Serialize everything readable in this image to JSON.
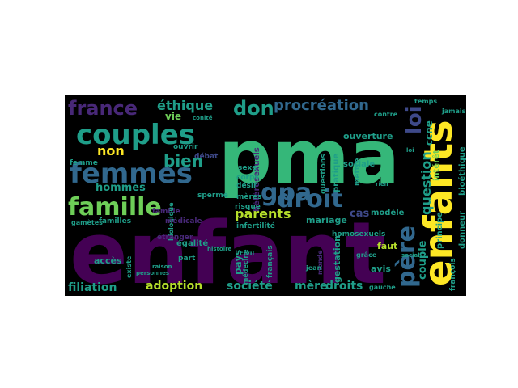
{
  "word_cloud": {
    "background": "#000000",
    "colors": {
      "dark_purple": "#440154",
      "purple": "#482878",
      "indigo": "#3e4989",
      "blue": "#31688e",
      "teal_blue": "#26828e",
      "teal": "#1f9e89",
      "green": "#35b779",
      "light_green": "#6ece58",
      "lime": "#b5de2b",
      "yellow": "#fde725"
    },
    "words": [
      {
        "text": "pma",
        "color": "green"
      },
      {
        "text": "enfant",
        "color": "dark_purple"
      },
      {
        "text": "enfants",
        "color": "yellow"
      },
      {
        "text": "couples",
        "color": "teal"
      },
      {
        "text": "femmes",
        "color": "blue"
      },
      {
        "text": "droit",
        "color": "blue"
      },
      {
        "text": "famille",
        "color": "light_green"
      },
      {
        "text": "gpa",
        "color": "blue"
      },
      {
        "text": "père",
        "color": "blue"
      },
      {
        "text": "loi",
        "color": "indigo"
      },
      {
        "text": "france",
        "color": "purple"
      },
      {
        "text": "don",
        "color": "teal"
      },
      {
        "text": "procréation",
        "color": "blue"
      },
      {
        "text": "éthique",
        "color": "teal"
      },
      {
        "text": "bien",
        "color": "teal"
      },
      {
        "text": "non",
        "color": "yellow"
      },
      {
        "text": "hommes",
        "color": "teal"
      },
      {
        "text": "parents",
        "color": "lime"
      },
      {
        "text": "question",
        "color": "teal"
      },
      {
        "text": "couple",
        "color": "teal"
      },
      {
        "text": "adoption",
        "color": "lime"
      },
      {
        "text": "filiation",
        "color": "teal"
      },
      {
        "text": "société",
        "color": "teal"
      },
      {
        "text": "mère",
        "color": "teal"
      },
      {
        "text": "droits",
        "color": "teal"
      },
      {
        "text": "ccne",
        "color": "teal"
      },
      {
        "text": "cas",
        "color": "indigo"
      },
      {
        "text": "vie",
        "color": "light_green"
      },
      {
        "text": "pays",
        "color": "teal"
      },
      {
        "text": "gestation",
        "color": "teal"
      },
      {
        "text": "mariage",
        "color": "teal"
      },
      {
        "text": "faut",
        "color": "lime"
      },
      {
        "text": "modèle",
        "color": "teal"
      },
      {
        "text": "accès",
        "color": "teal"
      },
      {
        "text": "avis",
        "color": "teal"
      },
      {
        "text": "ouverture",
        "color": "teal"
      },
      {
        "text": "sociale",
        "color": "teal"
      },
      {
        "text": "famille",
        "color": "purple"
      },
      {
        "text": "hétérosexuels",
        "color": "purple"
      },
      {
        "text": "homosexuels",
        "color": "teal"
      },
      {
        "text": "questions",
        "color": "teal"
      },
      {
        "text": "pratique",
        "color": "teal"
      },
      {
        "text": "mettre",
        "color": "teal"
      },
      {
        "text": "intérêt",
        "color": "light_green"
      },
      {
        "text": "principe",
        "color": "teal"
      },
      {
        "text": "bioéthique",
        "color": "teal"
      },
      {
        "text": "donneur",
        "color": "teal"
      },
      {
        "text": "françois",
        "color": "teal"
      },
      {
        "text": "jamais",
        "color": "teal"
      },
      {
        "text": "femme",
        "color": "teal"
      },
      {
        "text": "ouvrir",
        "color": "teal"
      },
      {
        "text": "débat",
        "color": "indigo"
      },
      {
        "text": "sexe",
        "color": "teal"
      },
      {
        "text": "corps",
        "color": "teal"
      },
      {
        "text": "désir",
        "color": "teal"
      },
      {
        "text": "biologique",
        "color": "teal"
      },
      {
        "text": "sperme",
        "color": "teal"
      },
      {
        "text": "familles",
        "color": "teal"
      },
      {
        "text": "gamètes",
        "color": "teal"
      },
      {
        "text": "médicale",
        "color": "purple"
      },
      {
        "text": "mères",
        "color": "teal"
      },
      {
        "text": "risque",
        "color": "teal"
      },
      {
        "text": "infertilité",
        "color": "teal"
      },
      {
        "text": "égalité",
        "color": "teal"
      },
      {
        "text": "étranger",
        "color": "purple"
      },
      {
        "text": "part",
        "color": "teal"
      },
      {
        "text": "civil",
        "color": "teal"
      },
      {
        "text": "français",
        "color": "teal"
      },
      {
        "text": "médecine",
        "color": "teal"
      },
      {
        "text": "monde",
        "color": "purple"
      },
      {
        "text": "jean",
        "color": "teal"
      },
      {
        "text": "grâce",
        "color": "teal"
      },
      {
        "text": "gauche",
        "color": "teal"
      },
      {
        "text": "contre",
        "color": "teal"
      },
      {
        "text": "temps",
        "color": "teal"
      },
      {
        "text": "conité",
        "color": "teal"
      },
      {
        "text": "raison",
        "color": "teal"
      },
      {
        "text": "personnes",
        "color": "teal"
      },
      {
        "text": "existe",
        "color": "teal"
      },
      {
        "text": "social",
        "color": "teal"
      },
      {
        "text": "loi",
        "color": "teal"
      },
      {
        "text": "rien",
        "color": "teal"
      },
      {
        "text": "histoire",
        "color": "teal"
      }
    ]
  }
}
